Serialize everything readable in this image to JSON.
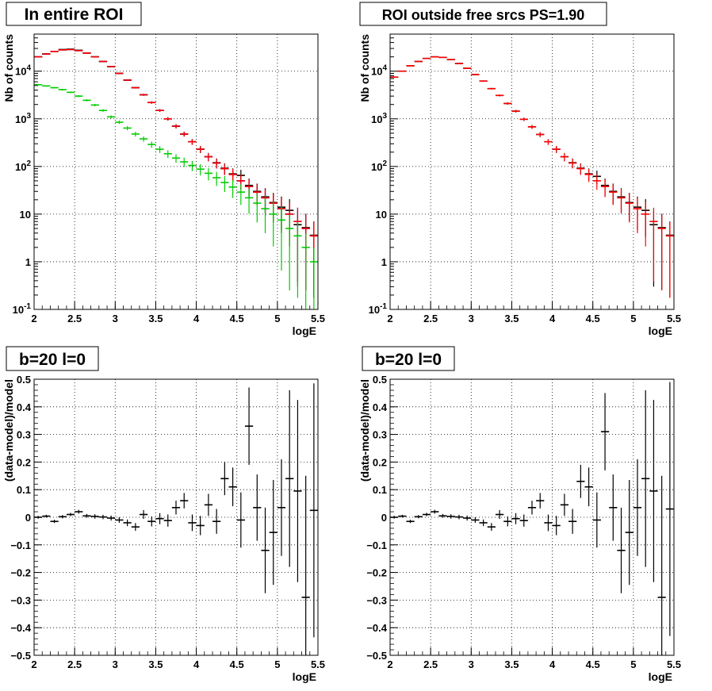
{
  "chart_data": [
    {
      "type": "scatter",
      "panel": "top-left",
      "title": "In entire ROI",
      "xlabel": "logE",
      "ylabel": "Nb of counts",
      "xlim": [
        2,
        5.5
      ],
      "ylim": [
        0.1,
        60000
      ],
      "log_y": true,
      "grid": true,
      "x_ticks": [
        "2",
        "2.5",
        "3",
        "3.5",
        "4",
        "4.5",
        "5",
        "5.5"
      ],
      "series": [
        {
          "color": "#0000cc",
          "x": [
            2.05,
            2.15,
            2.25,
            2.35,
            2.45,
            2.55,
            2.65,
            2.75,
            2.85,
            2.95,
            3.05,
            3.15,
            3.25,
            3.35,
            3.45,
            3.55,
            3.65,
            3.75,
            3.85,
            3.95,
            4.05,
            4.15,
            4.25,
            4.35,
            4.45,
            4.55,
            4.65,
            4.75,
            4.85,
            4.95,
            5.05,
            5.15,
            5.25,
            5.35,
            5.45
          ],
          "y": [
            20000,
            23000,
            26000,
            28000,
            28500,
            27000,
            24000,
            20000,
            16000,
            12500,
            9000,
            6500,
            4500,
            3200,
            2200,
            1500,
            1000,
            700,
            480,
            330,
            230,
            160,
            118,
            90,
            68,
            50,
            38,
            29,
            22,
            17,
            13,
            10,
            7,
            5,
            3.5
          ]
        },
        {
          "color": "#000000",
          "x": [
            2.05,
            2.15,
            2.25,
            2.35,
            2.45,
            2.55,
            2.65,
            2.75,
            2.85,
            2.95,
            3.05,
            3.15,
            3.25,
            3.35,
            3.45,
            3.55,
            3.65,
            3.75,
            3.85,
            3.95,
            4.05,
            4.15,
            4.25,
            4.35,
            4.45,
            4.55,
            4.65,
            4.75,
            4.85,
            4.95,
            5.05,
            5.15,
            5.25,
            5.35,
            5.45
          ],
          "y": [
            20000,
            23000,
            26000,
            28500,
            29000,
            27500,
            24000,
            20000,
            16000,
            12500,
            9000,
            6500,
            4500,
            3200,
            2200,
            1500,
            1000,
            700,
            480,
            330,
            230,
            160,
            120,
            92,
            70,
            65,
            40,
            30,
            23,
            17.5,
            14,
            12,
            6,
            5.2,
            3.6
          ]
        },
        {
          "color": "#ff0000",
          "x": [
            2.05,
            2.15,
            2.25,
            2.35,
            2.45,
            2.55,
            2.65,
            2.75,
            2.85,
            2.95,
            3.05,
            3.15,
            3.25,
            3.35,
            3.45,
            3.55,
            3.65,
            3.75,
            3.85,
            3.95,
            4.05,
            4.15,
            4.25,
            4.35,
            4.45,
            4.55,
            4.65,
            4.75,
            4.85,
            4.95,
            5.05,
            5.15,
            5.25,
            5.35,
            5.45
          ],
          "y": [
            20000,
            23000,
            26000,
            28000,
            28500,
            27000,
            24000,
            20000,
            16000,
            12500,
            9000,
            6500,
            4500,
            3200,
            2200,
            1500,
            1000,
            700,
            480,
            330,
            230,
            160,
            118,
            90,
            68,
            50,
            38,
            29,
            22,
            17,
            13,
            10,
            7,
            5,
            3.5
          ]
        },
        {
          "color": "#00cc00",
          "x": [
            2.05,
            2.15,
            2.25,
            2.35,
            2.45,
            2.55,
            2.65,
            2.75,
            2.85,
            2.95,
            3.05,
            3.15,
            3.25,
            3.35,
            3.45,
            3.55,
            3.65,
            3.75,
            3.85,
            3.95,
            4.05,
            4.15,
            4.25,
            4.35,
            4.45,
            4.55,
            4.65,
            4.75,
            4.85,
            4.95,
            5.05,
            5.15,
            5.25,
            5.35,
            5.45
          ],
          "y": [
            5200,
            4900,
            4500,
            4100,
            3600,
            3000,
            2450,
            1950,
            1500,
            1100,
            850,
            640,
            480,
            380,
            290,
            230,
            185,
            150,
            125,
            105,
            88,
            72,
            58,
            46,
            37,
            29,
            22,
            17,
            13,
            10,
            7.5,
            5,
            3.5,
            2,
            1
          ]
        }
      ]
    },
    {
      "type": "scatter",
      "panel": "top-right",
      "title": "ROI outside free srcs PS=1.90",
      "xlabel": "logE",
      "ylabel": "Nb of counts",
      "xlim": [
        2,
        5.5
      ],
      "ylim": [
        0.1,
        60000
      ],
      "log_y": true,
      "grid": true,
      "x_ticks": [
        "2",
        "2.5",
        "3",
        "3.5",
        "4",
        "4.5",
        "5",
        "5.5"
      ],
      "series": [
        {
          "color": "#000000",
          "x": [
            2.05,
            2.15,
            2.25,
            2.35,
            2.45,
            2.55,
            2.65,
            2.75,
            2.85,
            2.95,
            3.05,
            3.15,
            3.25,
            3.35,
            3.45,
            3.55,
            3.65,
            3.75,
            3.85,
            3.95,
            4.05,
            4.15,
            4.25,
            4.35,
            4.45,
            4.55,
            4.65,
            4.75,
            4.85,
            4.95,
            5.05,
            5.15,
            5.25,
            5.35,
            5.45
          ],
          "y": [
            7500,
            10000,
            13000,
            16000,
            18500,
            20000,
            19500,
            17500,
            14500,
            11500,
            8500,
            6200,
            4300,
            3100,
            2100,
            1450,
            980,
            680,
            470,
            330,
            230,
            160,
            120,
            92,
            70,
            62,
            40,
            30,
            23,
            17.5,
            14,
            12,
            6,
            5.2,
            3.6
          ]
        },
        {
          "color": "#ff0000",
          "x": [
            2.05,
            2.15,
            2.25,
            2.35,
            2.45,
            2.55,
            2.65,
            2.75,
            2.85,
            2.95,
            3.05,
            3.15,
            3.25,
            3.35,
            3.45,
            3.55,
            3.65,
            3.75,
            3.85,
            3.95,
            4.05,
            4.15,
            4.25,
            4.35,
            4.45,
            4.55,
            4.65,
            4.75,
            4.85,
            4.95,
            5.05,
            5.15,
            5.25,
            5.35,
            5.45
          ],
          "y": [
            7500,
            10000,
            13000,
            16000,
            18500,
            20000,
            19500,
            17500,
            14500,
            11500,
            8500,
            6200,
            4300,
            3100,
            2100,
            1450,
            980,
            680,
            470,
            330,
            230,
            160,
            118,
            90,
            68,
            50,
            38,
            29,
            22,
            17,
            13,
            10,
            7,
            5,
            3.5
          ]
        }
      ]
    },
    {
      "type": "scatter",
      "panel": "bottom-left",
      "title": "b=20 l=0",
      "xlabel": "logE",
      "ylabel": "(data-model)/model",
      "xlim": [
        2,
        5.5
      ],
      "ylim": [
        -0.5,
        0.5
      ],
      "log_y": false,
      "grid": true,
      "x_ticks": [
        "2",
        "2.5",
        "3",
        "3.5",
        "4",
        "4.5",
        "5",
        "5.5"
      ],
      "y_ticks": [
        "−0.5",
        "−0.4",
        "−0.3",
        "−0.2",
        "−0.1",
        "0",
        "0.1",
        "0.2",
        "0.3",
        "0.4",
        "0.5"
      ],
      "series": [
        {
          "color": "#000000",
          "x": [
            2.05,
            2.15,
            2.25,
            2.35,
            2.45,
            2.55,
            2.65,
            2.75,
            2.85,
            2.95,
            3.05,
            3.15,
            3.25,
            3.35,
            3.45,
            3.55,
            3.65,
            3.75,
            3.85,
            3.95,
            4.05,
            4.15,
            4.25,
            4.35,
            4.45,
            4.55,
            4.65,
            4.75,
            4.85,
            4.95,
            5.05,
            5.15,
            5.25,
            5.35,
            5.45
          ],
          "y": [
            0,
            0.004,
            -0.015,
            0.002,
            0.01,
            0.02,
            0.005,
            0.003,
            0.001,
            -0.003,
            -0.01,
            -0.02,
            -0.035,
            0.01,
            -0.015,
            -0.005,
            -0.012,
            0.035,
            0.06,
            -0.02,
            -0.03,
            0.045,
            -0.015,
            0.14,
            0.11,
            -0.01,
            0.33,
            0.035,
            -0.12,
            -0.055,
            0.035,
            0.14,
            0.095,
            -0.29,
            0.025
          ],
          "err": [
            0.005,
            0.005,
            0.006,
            0.006,
            0.006,
            0.007,
            0.007,
            0.008,
            0.008,
            0.009,
            0.01,
            0.012,
            0.014,
            0.016,
            0.018,
            0.02,
            0.022,
            0.025,
            0.028,
            0.03,
            0.035,
            0.04,
            0.045,
            0.06,
            0.07,
            0.1,
            0.14,
            0.12,
            0.155,
            0.19,
            0.175,
            0.32,
            0.33,
            0.44,
            0.46
          ]
        }
      ]
    },
    {
      "type": "scatter",
      "panel": "bottom-right",
      "title": "b=20 l=0",
      "xlabel": "logE",
      "ylabel": "(data-model)/model",
      "xlim": [
        2,
        5.5
      ],
      "ylim": [
        -0.5,
        0.5
      ],
      "log_y": false,
      "grid": true,
      "x_ticks": [
        "2",
        "2.5",
        "3",
        "3.5",
        "4",
        "4.5",
        "5",
        "5.5"
      ],
      "y_ticks": [
        "−0.5",
        "−0.4",
        "−0.3",
        "−0.2",
        "−0.1",
        "0",
        "0.1",
        "0.2",
        "0.3",
        "0.4",
        "0.5"
      ],
      "series": [
        {
          "color": "#000000",
          "x": [
            2.05,
            2.15,
            2.25,
            2.35,
            2.45,
            2.55,
            2.65,
            2.75,
            2.85,
            2.95,
            3.05,
            3.15,
            3.25,
            3.35,
            3.45,
            3.55,
            3.65,
            3.75,
            3.85,
            3.95,
            4.05,
            4.15,
            4.25,
            4.35,
            4.45,
            4.55,
            4.65,
            4.75,
            4.85,
            4.95,
            5.05,
            5.15,
            5.25,
            5.35,
            5.45
          ],
          "y": [
            0,
            0.004,
            -0.015,
            0.002,
            0.01,
            0.02,
            0.005,
            0.003,
            0.001,
            -0.003,
            -0.01,
            -0.02,
            -0.035,
            0.01,
            -0.015,
            -0.005,
            -0.012,
            0.035,
            0.06,
            -0.02,
            -0.03,
            0.045,
            -0.015,
            0.13,
            0.11,
            -0.01,
            0.31,
            0.035,
            -0.12,
            -0.055,
            0.035,
            0.14,
            0.095,
            -0.29,
            0.03
          ],
          "err": [
            0.005,
            0.005,
            0.006,
            0.006,
            0.006,
            0.007,
            0.007,
            0.008,
            0.008,
            0.009,
            0.01,
            0.012,
            0.014,
            0.016,
            0.018,
            0.02,
            0.022,
            0.025,
            0.028,
            0.03,
            0.035,
            0.04,
            0.045,
            0.06,
            0.07,
            0.1,
            0.14,
            0.12,
            0.155,
            0.19,
            0.175,
            0.32,
            0.33,
            0.44,
            0.46
          ]
        }
      ]
    }
  ]
}
